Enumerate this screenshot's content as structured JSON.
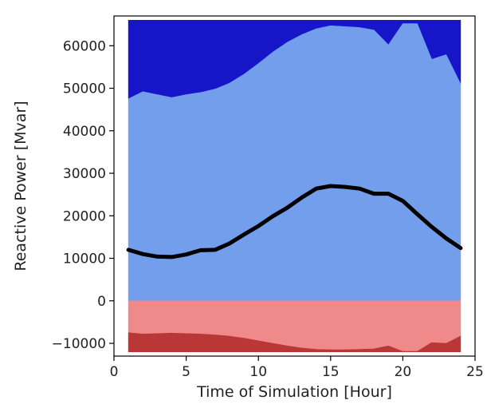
{
  "chart_data": {
    "type": "area",
    "title": "",
    "xlabel": "Time of Simulation [Hour]",
    "ylabel": "Reactive Power [Mvar]",
    "xlim": [
      0,
      25
    ],
    "ylim": [
      -13000,
      67000
    ],
    "x_ticks": [
      0,
      5,
      10,
      15,
      20,
      25
    ],
    "y_ticks": [
      -10000,
      0,
      10000,
      20000,
      30000,
      40000,
      50000,
      60000
    ],
    "grid": false,
    "legend": "none",
    "x": [
      1,
      2,
      3,
      4,
      5,
      6,
      7,
      8,
      9,
      10,
      11,
      12,
      13,
      14,
      15,
      16,
      17,
      18,
      19,
      20,
      21,
      22,
      23,
      24
    ],
    "bands": [
      {
        "color": "#1616c8",
        "lower": [
          47500,
          49200,
          48500,
          47800,
          48500,
          49000,
          49800,
          51200,
          53300,
          55800,
          58500,
          60800,
          62600,
          64000,
          64700,
          64500,
          64300,
          63700,
          60200,
          65200,
          65200,
          56800,
          57900,
          51000
        ],
        "upper": [
          66000,
          66000,
          66000,
          66000,
          66000,
          66000,
          66000,
          66000,
          66000,
          66000,
          66000,
          66000,
          66000,
          66000,
          66000,
          66000,
          66000,
          66000,
          66000,
          66000,
          66000,
          66000,
          66000,
          66000
        ]
      },
      {
        "color": "#729eec",
        "lower": [
          0,
          0,
          0,
          0,
          0,
          0,
          0,
          0,
          0,
          0,
          0,
          0,
          0,
          0,
          0,
          0,
          0,
          0,
          0,
          0,
          0,
          0,
          0,
          0
        ],
        "upper": [
          47500,
          49200,
          48500,
          47800,
          48500,
          49000,
          49800,
          51200,
          53300,
          55800,
          58500,
          60800,
          62600,
          64000,
          64700,
          64500,
          64300,
          63700,
          60200,
          65200,
          65200,
          56800,
          57900,
          51000
        ]
      },
      {
        "color": "#f08a8a",
        "lower": [
          -7500,
          -7800,
          -7700,
          -7600,
          -7700,
          -7800,
          -8000,
          -8300,
          -8800,
          -9400,
          -10000,
          -10600,
          -11100,
          -11400,
          -11500,
          -11500,
          -11400,
          -11300,
          -10600,
          -11900,
          -11900,
          -9800,
          -10000,
          -8300
        ],
        "upper": [
          0,
          0,
          0,
          0,
          0,
          0,
          0,
          0,
          0,
          0,
          0,
          0,
          0,
          0,
          0,
          0,
          0,
          0,
          0,
          0,
          0,
          0,
          0,
          0
        ]
      },
      {
        "color": "#b93737",
        "lower": [
          -12000,
          -12000,
          -12000,
          -12000,
          -12000,
          -12000,
          -12000,
          -12000,
          -12000,
          -12000,
          -12000,
          -12000,
          -12000,
          -12000,
          -12000,
          -12000,
          -12000,
          -12000,
          -12000,
          -12000,
          -12000,
          -12000,
          -12000,
          -12000
        ],
        "upper": [
          -7500,
          -7800,
          -7700,
          -7600,
          -7700,
          -7800,
          -8000,
          -8300,
          -8800,
          -9400,
          -10000,
          -10600,
          -11100,
          -11400,
          -11500,
          -11500,
          -11400,
          -11300,
          -10600,
          -11900,
          -11900,
          -9800,
          -10000,
          -8300
        ]
      }
    ],
    "line": {
      "color": "#000000",
      "values": [
        12000,
        11000,
        10400,
        10300,
        10900,
        11900,
        12000,
        13500,
        15600,
        17600,
        19900,
        21900,
        24300,
        26400,
        27000,
        26800,
        26400,
        25200,
        25200,
        23500,
        20400,
        17400,
        14700,
        12400
      ]
    }
  }
}
